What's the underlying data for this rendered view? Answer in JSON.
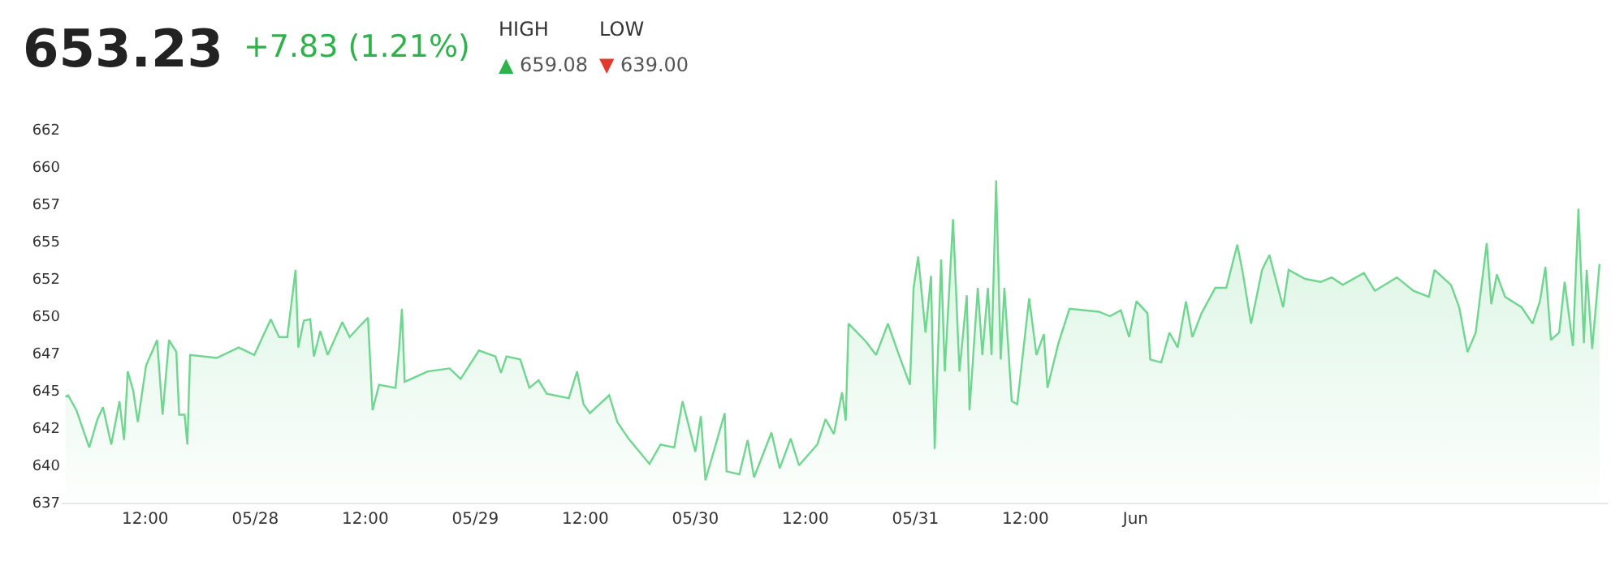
{
  "chart_data": {
    "type": "area",
    "title": "653.23",
    "subtitle": "+7.83 (1.21%)",
    "annotations": [
      "HIGH",
      "▲ 659.08",
      "LOW",
      "▼ 639.00"
    ],
    "xlim": [
      "--05-27T02:54",
      "--06-03T03:30"
    ],
    "xticks": [
      {
        "value": "--05-27T12:00",
        "label": "12:00"
      },
      {
        "value": "--05-28",
        "label": "05/28"
      },
      {
        "value": "--05-28T12:00",
        "label": "12:00"
      },
      {
        "value": "--05-29",
        "label": "05/29"
      },
      {
        "value": "--05-29T12:00",
        "label": "12:00"
      },
      {
        "value": "--05-30",
        "label": "05/30"
      },
      {
        "value": "--05-30T12:00",
        "label": "12:00"
      },
      {
        "value": "--05-31",
        "label": "05/31"
      },
      {
        "value": "--05-31T12:00",
        "label": "12:00"
      },
      {
        "value": "--06-01",
        "label": "Jun"
      }
    ],
    "ylim": [
      637.5,
      662.5
    ],
    "yticks": [
      {
        "value": 637.5,
        "label": "637"
      },
      {
        "value": 640,
        "label": "640"
      },
      {
        "value": 642.5,
        "label": "642"
      },
      {
        "value": 645,
        "label": "645"
      },
      {
        "value": 647.5,
        "label": "647"
      },
      {
        "value": 650,
        "label": "650"
      },
      {
        "value": 652.5,
        "label": "652"
      },
      {
        "value": 655,
        "label": "655"
      },
      {
        "value": 657.5,
        "label": "657"
      },
      {
        "value": 660,
        "label": "660"
      },
      {
        "value": 662.5,
        "label": "662"
      }
    ],
    "grid": false,
    "marker": "none",
    "line_style": "solid",
    "x": [
      "--05-27T03:18",
      "--05-27T03:36",
      "--05-27T04:30",
      "--05-27T05:54",
      "--05-27T06:48",
      "--05-27T07:24",
      "--05-27T08:18",
      "--05-27T09:12",
      "--05-27T09:42",
      "--05-27T10:06",
      "--05-27T10:42",
      "--05-27T11:12",
      "--05-27T12:06",
      "--05-27T13:18",
      "--05-27T13:54",
      "--05-27T14:36",
      "--05-27T15:24",
      "--05-27T15:42",
      "--05-27T16:18",
      "--05-27T16:36",
      "--05-27T16:54",
      "--05-27T19:48",
      "--05-27T22:12",
      "--05-27T23:54",
      "--05-28T01:42",
      "--05-28T02:36",
      "--05-28T03:30",
      "--05-28T04:24",
      "--05-28T04:42",
      "--05-28T05:18",
      "--05-28T06:00",
      "--05-28T06:24",
      "--05-28T07:06",
      "--05-28T07:54",
      "--05-28T09:30",
      "--05-28T10:18",
      "--05-28T11:30",
      "--05-28T12:18",
      "--05-28T12:48",
      "--05-28T13:30",
      "--05-28T15:18",
      "--05-28T15:42",
      "--05-28T16:00",
      "--05-28T16:18",
      "--05-28T18:48",
      "--05-28T21:12",
      "--05-28T22:24",
      "--05-29T00:24",
      "--05-29T02:12",
      "--05-29T02:48",
      "--05-29T03:24",
      "--05-29T04:54",
      "--05-29T05:54",
      "--05-29T06:54",
      "--05-29T07:48",
      "--05-29T10:12",
      "--05-29T11:06",
      "--05-29T11:48",
      "--05-29T12:30",
      "--05-29T14:36",
      "--05-29T15:30",
      "--05-29T16:42",
      "--05-29T19:00",
      "--05-29T20:12",
      "--05-29T21:42",
      "--05-29T22:36",
      "--05-30T00:00",
      "--05-30T00:36",
      "--05-30T01:06",
      "--05-30T03:12",
      "--05-30T03:24",
      "--05-30T04:48",
      "--05-30T05:42",
      "--05-30T06:24",
      "--05-30T08:18",
      "--05-30T09:12",
      "--05-30T10:24",
      "--05-30T11:18",
      "--05-30T13:18",
      "--05-30T14:12",
      "--05-30T15:06",
      "--05-30T16:00",
      "--05-30T16:24",
      "--05-30T16:42",
      "--05-30T18:36",
      "--05-30T19:42",
      "--05-30T21:00",
      "--05-30T22:12",
      "--05-30T23:24",
      "--05-30T23:48",
      "--05-31T00:18",
      "--05-31T01:06",
      "--05-31T01:42",
      "--05-31T02:06",
      "--05-31T02:48",
      "--05-31T03:12",
      "--05-31T04:06",
      "--05-31T04:48",
      "--05-31T05:36",
      "--05-31T05:54",
      "--05-31T06:48",
      "--05-31T07:18",
      "--05-31T07:54",
      "--05-31T08:18",
      "--05-31T08:48",
      "--05-31T09:18",
      "--05-31T09:42",
      "--05-31T10:30",
      "--05-31T11:06",
      "--05-31T12:24",
      "--05-31T13:12",
      "--05-31T14:00",
      "--05-31T14:24",
      "--05-31T15:36",
      "--05-31T16:48",
      "--05-31T20:00",
      "--05-31T21:12",
      "--05-31T22:24",
      "--05-31T23:18",
      "--06-01T00:06",
      "--06-01T01:18",
      "--06-01T01:36",
      "--06-01T02:48",
      "--06-01T03:42",
      "--06-01T04:36",
      "--06-01T05:30",
      "--06-01T06:12",
      "--06-01T07:12",
      "--06-01T08:42",
      "--06-01T09:54",
      "--06-01T11:06",
      "--06-01T11:42",
      "--06-01T12:36",
      "--06-01T13:48",
      "--06-01T14:36",
      "--06-01T15:48",
      "--06-01T16:06",
      "--06-01T16:42",
      "--06-01T18:30",
      "--06-01T20:12",
      "--06-01T21:24",
      "--06-01T22:36",
      "--06-02T00:54",
      "--06-02T02:06",
      "--06-02T04:30",
      "--06-02T06:18",
      "--06-02T08:00",
      "--06-02T08:36",
      "--06-02T10:24",
      "--06-02T11:18",
      "--06-02T12:12",
      "--06-02T13:06",
      "--06-02T14:18",
      "--06-02T14:48",
      "--06-02T15:24",
      "--06-02T16:18",
      "--06-02T18:06",
      "--06-02T19:18",
      "--06-02T20:06",
      "--06-02T20:42",
      "--06-02T21:18",
      "--06-02T22:12",
      "--06-02T22:48",
      "--06-02T23:42",
      "--06-03T00:18",
      "--06-03T00:54",
      "--06-03T01:12",
      "--06-03T01:48",
      "--06-03T02:36"
    ],
    "series": [
      {
        "color": "#6fd68f",
        "values": [
          644.6,
          644.7,
          643.7,
          641.2,
          643.1,
          643.9,
          641.4,
          644.3,
          641.7,
          646.3,
          645.0,
          642.9,
          646.7,
          648.4,
          643.4,
          648.4,
          647.6,
          643.4,
          643.4,
          641.4,
          647.4,
          647.2,
          647.9,
          647.4,
          649.8,
          648.6,
          648.6,
          653.1,
          647.9,
          649.7,
          649.8,
          647.3,
          649.0,
          647.4,
          649.6,
          648.6,
          649.4,
          649.9,
          643.7,
          645.4,
          645.2,
          647.9,
          650.5,
          645.6,
          646.3,
          646.5,
          645.8,
          647.7,
          647.3,
          646.2,
          647.3,
          647.1,
          645.2,
          645.7,
          644.8,
          644.5,
          646.3,
          644.1,
          643.5,
          644.7,
          642.9,
          641.8,
          640.1,
          641.4,
          641.2,
          644.3,
          640.9,
          643.3,
          639.0,
          643.5,
          639.6,
          639.4,
          641.7,
          639.2,
          642.2,
          639.8,
          641.8,
          640.0,
          641.4,
          643.1,
          642.1,
          644.9,
          643.0,
          649.5,
          648.3,
          647.4,
          649.5,
          647.4,
          645.4,
          651.9,
          654.0,
          648.9,
          652.7,
          641.1,
          653.8,
          646.3,
          656.5,
          646.3,
          651.4,
          643.7,
          651.9,
          647.4,
          651.9,
          647.4,
          659.1,
          647.1,
          651.9,
          644.3,
          644.1,
          651.2,
          647.4,
          648.8,
          645.2,
          648.2,
          650.5,
          650.3,
          650.0,
          650.4,
          648.6,
          651.0,
          650.2,
          647.1,
          646.9,
          648.9,
          647.9,
          651.0,
          648.6,
          650.2,
          651.9,
          651.9,
          654.8,
          652.9,
          649.5,
          653.1,
          654.1,
          651.3,
          650.6,
          653.1,
          652.5,
          652.3,
          652.6,
          652.1,
          652.9,
          651.7,
          652.6,
          651.7,
          651.3,
          653.1,
          652.1,
          650.6,
          647.6,
          648.9,
          654.9,
          650.8,
          652.8,
          651.3,
          650.6,
          649.5,
          651.0,
          653.3,
          648.4,
          648.9,
          652.3,
          648.0,
          657.2,
          648.2,
          653.1,
          647.8,
          653.5
        ]
      }
    ]
  }
}
